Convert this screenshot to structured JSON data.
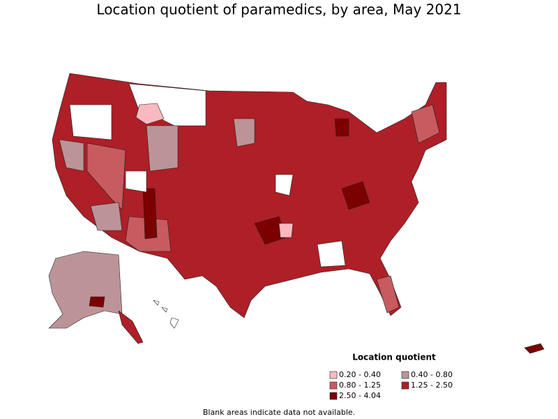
{
  "title": "Location quotient of paramedics, by area, May 2021",
  "legend": {
    "title": "Location quotient",
    "items": [
      {
        "label": "0.20 - 0.40",
        "color": "#f9b9c1"
      },
      {
        "label": "0.40 - 0.80",
        "color": "#bc9498"
      },
      {
        "label": "0.80 - 1.25",
        "color": "#c75b60"
      },
      {
        "label": "1.25 - 2.50",
        "color": "#ae1f27"
      },
      {
        "label": "2.50 - 4.04",
        "color": "#7c0000"
      }
    ]
  },
  "footnote": "Blank areas indicate data not available."
}
